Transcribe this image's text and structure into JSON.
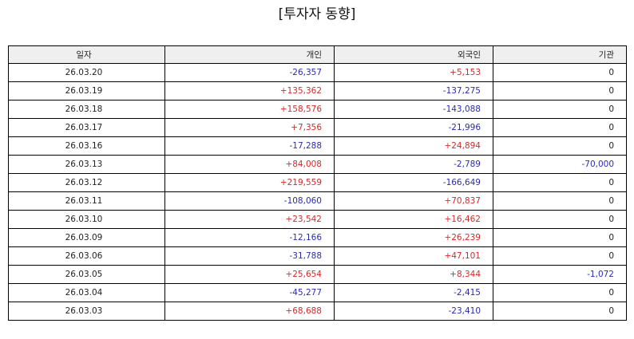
{
  "title": "[투자자 동향]",
  "colors": {
    "positive": "#d42b2b",
    "negative": "#2b2bb0",
    "header_bg": "#efefef"
  },
  "columns": [
    "일자",
    "개인",
    "외국인",
    "기관"
  ],
  "rows": [
    [
      "26.03.20",
      "-26,357",
      "+5,153",
      "0"
    ],
    [
      "26.03.19",
      "+135,362",
      "-137,275",
      "0"
    ],
    [
      "26.03.18",
      "+158,576",
      "-143,088",
      "0"
    ],
    [
      "26.03.17",
      "+7,356",
      "-21,996",
      "0"
    ],
    [
      "26.03.16",
      "-17,288",
      "+24,894",
      "0"
    ],
    [
      "26.03.13",
      "+84,008",
      "-2,789",
      "-70,000"
    ],
    [
      "26.03.12",
      "+219,559",
      "-166,649",
      "0"
    ],
    [
      "26.03.11",
      "-108,060",
      "+70,837",
      "0"
    ],
    [
      "26.03.10",
      "+23,542",
      "+16,462",
      "0"
    ],
    [
      "26.03.09",
      "-12,166",
      "+26,239",
      "0"
    ],
    [
      "26.03.06",
      "-31,788",
      "+47,101",
      "0"
    ],
    [
      "26.03.05",
      "+25,654",
      "+8,344",
      "-1,072"
    ],
    [
      "26.03.04",
      "-45,277",
      "-2,415",
      "0"
    ],
    [
      "26.03.03",
      "+68,688",
      "-23,410",
      "0"
    ]
  ]
}
